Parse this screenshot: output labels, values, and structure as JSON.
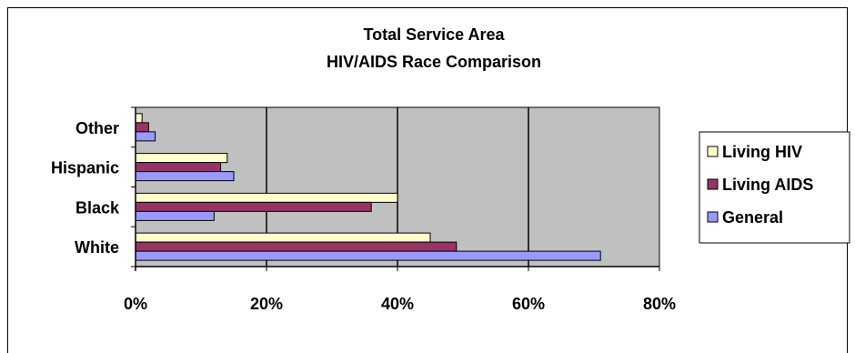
{
  "chart_data": {
    "type": "bar",
    "orientation": "horizontal",
    "title": "Total Service Area",
    "subtitle": "HIV/AIDS Race Comparison",
    "categories": [
      "White",
      "Black",
      "Hispanic",
      "Other"
    ],
    "series": [
      {
        "name": "Living HIV",
        "color": "#FFFFCC",
        "values": [
          45,
          40,
          14,
          1
        ]
      },
      {
        "name": "Living AIDS",
        "color": "#993366",
        "values": [
          49,
          36,
          13,
          2
        ]
      },
      {
        "name": "General",
        "color": "#9999FF",
        "values": [
          71,
          12,
          15,
          3
        ]
      }
    ],
    "xlim": [
      0,
      80
    ],
    "xticks": [
      0,
      20,
      40,
      60,
      80
    ],
    "xtick_labels": [
      "0%",
      "20%",
      "40%",
      "60%",
      "80%"
    ],
    "plot_background": "#C0C0C0",
    "grid": true,
    "legend_position": "right"
  }
}
